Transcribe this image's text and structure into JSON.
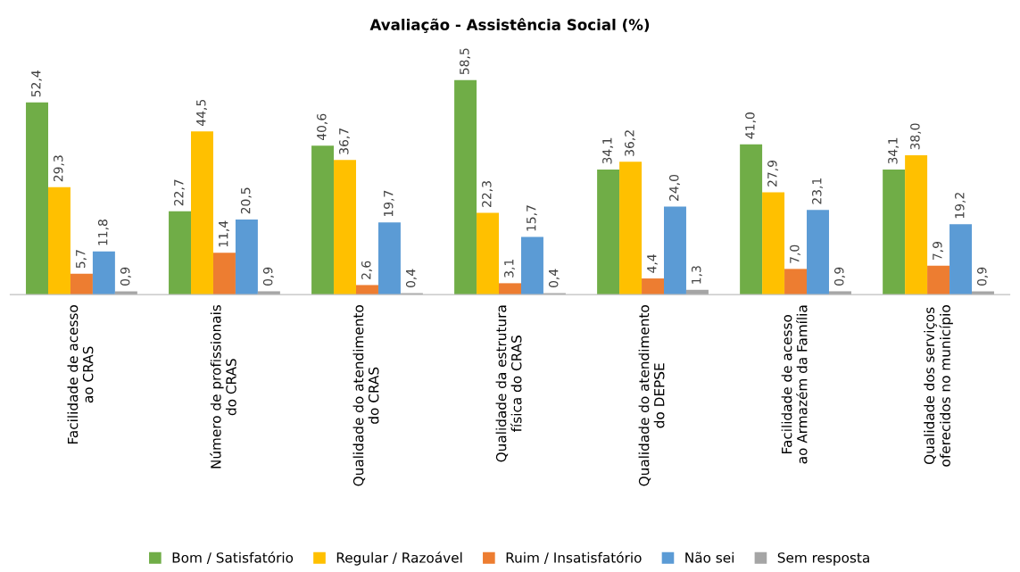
{
  "chart_data": {
    "type": "bar",
    "title": "Avaliação - Assistência Social (%)",
    "categories": [
      "Facilidade de acesso\nao CRAS",
      "Número de profissionais\ndo CRAS",
      "Qualidade do atendimento\ndo CRAS",
      "Qualidade da estrutura\nfísica do CRAS",
      "Qualidade do atendimento\ndo DEPSE",
      "Facilidade de acesso\nao Armazém da Família",
      "Qualidade dos serviços\noferecidos no município"
    ],
    "series": [
      {
        "name": "Bom / Satisfatório",
        "color": "#70ad47",
        "values": [
          52.4,
          22.7,
          40.6,
          58.5,
          34.1,
          41.0,
          34.1
        ],
        "value_labels": [
          "52,4",
          "22,7",
          "40,6",
          "58,5",
          "34,1",
          "41,0",
          "34,1"
        ]
      },
      {
        "name": "Regular / Razoável",
        "color": "#ffc000",
        "values": [
          29.3,
          44.5,
          36.7,
          22.3,
          36.2,
          27.9,
          38.0
        ],
        "value_labels": [
          "29,3",
          "44,5",
          "36,7",
          "22,3",
          "36,2",
          "27,9",
          "38,0"
        ]
      },
      {
        "name": "Ruim / Insatisfatório",
        "color": "#ed7d31",
        "values": [
          5.7,
          11.4,
          2.6,
          3.1,
          4.4,
          7.0,
          7.9
        ],
        "value_labels": [
          "5,7",
          "11,4",
          "2,6",
          "3,1",
          "4,4",
          "7,0",
          "7,9"
        ]
      },
      {
        "name": "Não sei",
        "color": "#5b9bd5",
        "values": [
          11.8,
          20.5,
          19.7,
          15.7,
          24.0,
          23.1,
          19.2
        ],
        "value_labels": [
          "11,8",
          "20,5",
          "19,7",
          "15,7",
          "24,0",
          "23,1",
          "19,2"
        ]
      },
      {
        "name": "Sem resposta",
        "color": "#a5a5a5",
        "values": [
          0.9,
          0.9,
          0.4,
          0.4,
          1.3,
          0.9,
          0.9
        ],
        "value_labels": [
          "0,9",
          "0,9",
          "0,4",
          "0,4",
          "1,3",
          "0,9",
          "0,9"
        ]
      }
    ],
    "tick_labels": "x",
    "grid": false,
    "legend": "bottom"
  }
}
